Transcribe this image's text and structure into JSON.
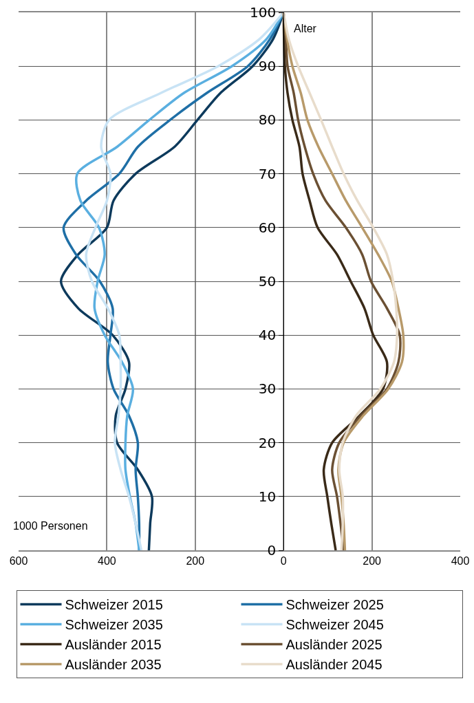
{
  "chart_data": {
    "type": "line",
    "xlim": [
      -600,
      400
    ],
    "ylim": [
      0,
      100
    ],
    "xticks": [
      {
        "value": -600,
        "label": "600"
      },
      {
        "value": -400,
        "label": "400"
      },
      {
        "value": -200,
        "label": "200"
      },
      0,
      200,
      400
    ],
    "yticks": [
      0,
      10,
      20,
      30,
      40,
      50,
      60,
      70,
      80,
      90,
      100
    ],
    "grid": true,
    "legend": "bottom",
    "marker": "none",
    "line_style": "solid",
    "annotations": [
      "Alter",
      "1000 Personen"
    ],
    "series": [
      {
        "name": "Schweizer 2015",
        "color": "#0d3a5c",
        "x": [
          -305,
          -302,
          -298,
          -330,
          -377,
          -380,
          -358,
          -350,
          -387,
          -465,
          -504,
          -465,
          -400,
          -385,
          -335,
          -247,
          -195,
          -143,
          -70,
          -24,
          0
        ],
        "values": [
          0,
          5,
          10,
          15,
          20,
          25,
          30,
          35,
          40,
          45,
          50,
          55,
          60,
          65,
          70,
          75,
          80,
          85,
          90,
          95,
          100
        ]
      },
      {
        "name": "Schweizer 2025",
        "color": "#1f6fa6",
        "x": [
          -327,
          -327,
          -330,
          -335,
          -330,
          -350,
          -385,
          -398,
          -392,
          -387,
          -416,
          -470,
          -498,
          -447,
          -372,
          -330,
          -257,
          -174,
          -81,
          -31,
          0
        ],
        "values": [
          0,
          5,
          10,
          15,
          20,
          25,
          30,
          35,
          40,
          45,
          50,
          55,
          60,
          65,
          70,
          75,
          80,
          85,
          90,
          95,
          100
        ]
      },
      {
        "name": "Schweizer 2035",
        "color": "#5aafe0",
        "x": [
          -327,
          -335,
          -348,
          -358,
          -358,
          -354,
          -341,
          -366,
          -405,
          -428,
          -421,
          -405,
          -418,
          -460,
          -467,
          -377,
          -304,
          -226,
          -117,
          -39,
          0
        ],
        "values": [
          0,
          5,
          10,
          15,
          20,
          25,
          30,
          35,
          40,
          45,
          50,
          55,
          60,
          65,
          70,
          75,
          80,
          85,
          90,
          95,
          100
        ]
      },
      {
        "name": "Schweizer 2045",
        "color": "#c8e3f5",
        "x": [
          -322,
          -335,
          -350,
          -369,
          -382,
          -374,
          -369,
          -369,
          -372,
          -398,
          -434,
          -447,
          -426,
          -400,
          -392,
          -413,
          -395,
          -278,
          -148,
          -55,
          0
        ],
        "values": [
          0,
          5,
          10,
          15,
          20,
          25,
          30,
          35,
          40,
          45,
          50,
          55,
          60,
          65,
          70,
          75,
          80,
          85,
          90,
          95,
          100
        ]
      },
      {
        "name": "Ausländer 2015",
        "color": "#3a2a18",
        "x": [
          118,
          108,
          99,
          91,
          110,
          172,
          225,
          234,
          203,
          183,
          152,
          121,
          77,
          59,
          43,
          36,
          20,
          9,
          3,
          1,
          0
        ],
        "values": [
          0,
          5,
          10,
          15,
          20,
          25,
          30,
          35,
          40,
          45,
          50,
          55,
          60,
          65,
          70,
          75,
          80,
          85,
          90,
          95,
          100
        ]
      },
      {
        "name": "Ausländer 2025",
        "color": "#6b5033",
        "x": [
          136,
          129,
          121,
          110,
          126,
          175,
          234,
          260,
          263,
          234,
          198,
          178,
          141,
          95,
          67,
          48,
          33,
          23,
          9,
          5,
          0
        ],
        "values": [
          0,
          5,
          10,
          15,
          20,
          25,
          30,
          35,
          40,
          45,
          50,
          55,
          60,
          65,
          70,
          75,
          80,
          85,
          90,
          95,
          100
        ]
      },
      {
        "name": "Ausländer 2035",
        "color": "#b89a6a",
        "x": [
          139,
          136,
          131,
          124,
          136,
          180,
          237,
          268,
          271,
          260,
          245,
          214,
          178,
          141,
          110,
          79,
          54,
          39,
          20,
          8,
          0
        ],
        "values": [
          0,
          5,
          10,
          15,
          20,
          25,
          30,
          35,
          40,
          45,
          50,
          55,
          60,
          65,
          70,
          75,
          80,
          85,
          90,
          95,
          100
        ]
      },
      {
        "name": "Ausländer 2045",
        "color": "#e8dccb",
        "x": [
          131,
          134,
          134,
          126,
          134,
          164,
          219,
          250,
          257,
          255,
          248,
          234,
          203,
          167,
          136,
          110,
          85,
          59,
          33,
          12,
          0
        ],
        "values": [
          0,
          5,
          10,
          15,
          20,
          25,
          30,
          35,
          40,
          45,
          50,
          55,
          60,
          65,
          70,
          75,
          80,
          85,
          90,
          95,
          100
        ]
      }
    ]
  }
}
